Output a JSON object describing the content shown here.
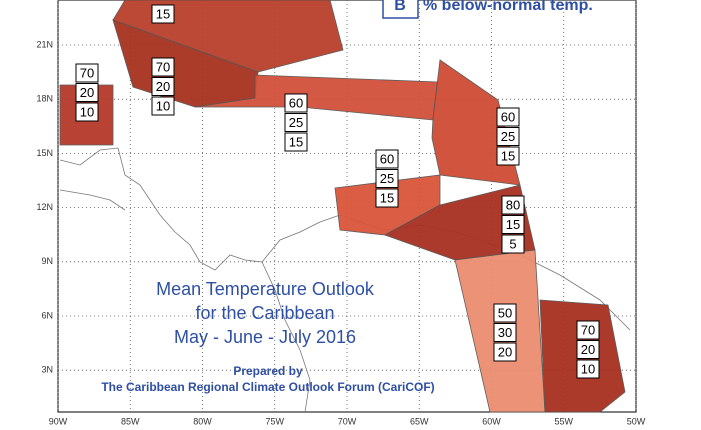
{
  "map": {
    "lat_ticks": [
      "21N",
      "18N",
      "15N",
      "12N",
      "9N",
      "6N",
      "3N"
    ],
    "lon_ticks": [
      "90W",
      "85W",
      "80W",
      "75W",
      "70W",
      "65W",
      "60W",
      "55W",
      "50W"
    ],
    "legend": {
      "key": "B",
      "text": "% below-normal temp."
    },
    "title": [
      "Mean Temperature Outlook",
      "for the Caribbean",
      "May - June - July 2016"
    ],
    "credit": [
      "Prepared by",
      "The Caribbean Regional Climate Outlook Forum (CariCOF)"
    ],
    "regions": [
      {
        "values": [
          15
        ]
      },
      {
        "values": [
          70,
          20,
          10
        ]
      },
      {
        "values": [
          70,
          20,
          10
        ]
      },
      {
        "values": [
          60,
          25,
          15
        ]
      },
      {
        "values": [
          60,
          25,
          15
        ]
      },
      {
        "values": [
          60,
          25,
          15
        ]
      },
      {
        "values": [
          80,
          15,
          5
        ]
      },
      {
        "values": [
          50,
          30,
          20
        ]
      },
      {
        "values": [
          70,
          20,
          10
        ]
      }
    ]
  }
}
